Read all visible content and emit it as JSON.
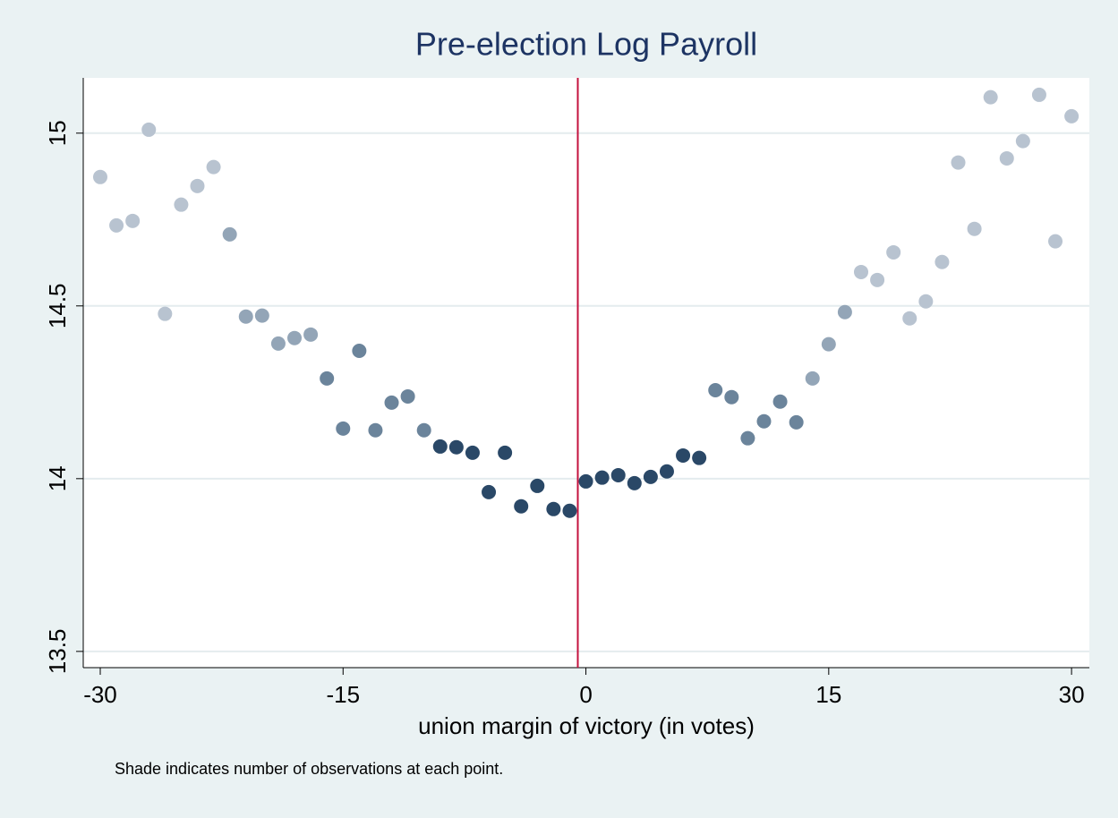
{
  "chart_data": {
    "type": "scatter",
    "title": "Pre-election Log Payroll",
    "x_label": "union margin of victory (in votes)",
    "note": "Shade indicates number of observations at each point.",
    "x": [
      -30,
      -29,
      -28,
      -27,
      -26,
      -25,
      -24,
      -23,
      -22,
      -21,
      -20,
      -19,
      -18,
      -17,
      -16,
      -15,
      -14,
      -13,
      -12,
      -11,
      -10,
      -9,
      -8,
      -7,
      -6,
      -5,
      -4,
      -3,
      -2,
      -1,
      0,
      1,
      2,
      3,
      4,
      5,
      6,
      7,
      8,
      9,
      10,
      11,
      12,
      13,
      14,
      15,
      16,
      17,
      18,
      19,
      20,
      21,
      22,
      23,
      24,
      25,
      26,
      27,
      28,
      29,
      30
    ],
    "values": [
      14.873,
      14.733,
      14.746,
      15.01,
      14.477,
      14.793,
      14.847,
      14.902,
      14.707,
      14.469,
      14.472,
      14.391,
      14.407,
      14.417,
      14.29,
      14.145,
      14.37,
      14.14,
      14.22,
      14.238,
      14.14,
      14.093,
      14.091,
      14.075,
      13.961,
      14.075,
      13.92,
      13.979,
      13.912,
      13.907,
      13.992,
      14.003,
      14.01,
      13.987,
      14.005,
      14.021,
      14.067,
      14.06,
      14.256,
      14.236,
      14.117,
      14.166,
      14.223,
      14.163,
      14.29,
      14.389,
      14.482,
      14.598,
      14.575,
      14.655,
      14.464,
      14.513,
      14.627,
      14.915,
      14.723,
      15.104,
      14.927,
      14.977,
      15.111,
      14.687,
      15.049
    ],
    "colors": [
      "#b8c3d0",
      "#b8c3d0",
      "#b8c3d0",
      "#b8c3d0",
      "#b8c3d0",
      "#b8c3d0",
      "#b8c3d0",
      "#b8c3d0",
      "#93a5b7",
      "#93a5b7",
      "#93a5b7",
      "#93a5b7",
      "#93a5b7",
      "#93a5b7",
      "#6b849b",
      "#6b849b",
      "#6b849b",
      "#6b849b",
      "#6b849b",
      "#6b849b",
      "#6b849b",
      "#2a4867",
      "#2a4867",
      "#2a4867",
      "#2a4867",
      "#2a4867",
      "#2a4867",
      "#2a4867",
      "#2a4867",
      "#2a4867",
      "#2a4867",
      "#2a4867",
      "#2a4867",
      "#2a4867",
      "#2a4867",
      "#2a4867",
      "#2a4867",
      "#2a4867",
      "#6b849b",
      "#6b849b",
      "#6b849b",
      "#6b849b",
      "#6b849b",
      "#6b849b",
      "#93a5b7",
      "#93a5b7",
      "#93a5b7",
      "#b8c3d0",
      "#b8c3d0",
      "#b8c3d0",
      "#b8c3d0",
      "#b8c3d0",
      "#b8c3d0",
      "#b8c3d0",
      "#b8c3d0",
      "#b8c3d0",
      "#b8c3d0",
      "#b8c3d0",
      "#b8c3d0",
      "#b8c3d0",
      "#b8c3d0"
    ],
    "xline": -0.5,
    "xline_color": "#c4123e",
    "xlim": [
      -31.05,
      31.1
    ],
    "ylim": [
      13.453,
      15.16
    ],
    "xticks": [
      -30,
      -15,
      0,
      15,
      30
    ],
    "yticks": [
      13.5,
      14,
      14.5,
      15
    ],
    "grid": true
  }
}
